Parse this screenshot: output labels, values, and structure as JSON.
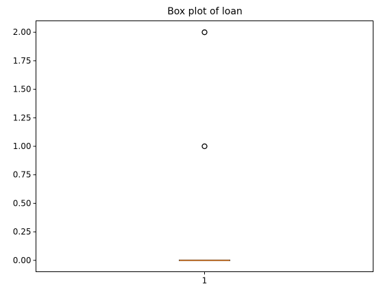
{
  "chart_data": {
    "type": "box",
    "title": "Box plot of loan",
    "xlabel": "",
    "ylabel": "",
    "categories": [
      "1"
    ],
    "boxes": [
      {
        "name": "1",
        "whisker_low": 0,
        "q1": 0,
        "median": 0,
        "q3": 0,
        "whisker_high": 0,
        "outliers": [
          1,
          2
        ]
      }
    ],
    "ylim": [
      -0.1,
      2.1
    ],
    "yticks": [
      0.0,
      0.25,
      0.5,
      0.75,
      1.0,
      1.25,
      1.5,
      1.75,
      2.0
    ],
    "ytick_labels": [
      "0.00",
      "0.25",
      "0.50",
      "0.75",
      "1.00",
      "1.25",
      "1.50",
      "1.75",
      "2.00"
    ],
    "grid": false,
    "colors": {
      "box": "#000000",
      "median": "#e1812c",
      "outlier_edge": "#000000"
    }
  }
}
